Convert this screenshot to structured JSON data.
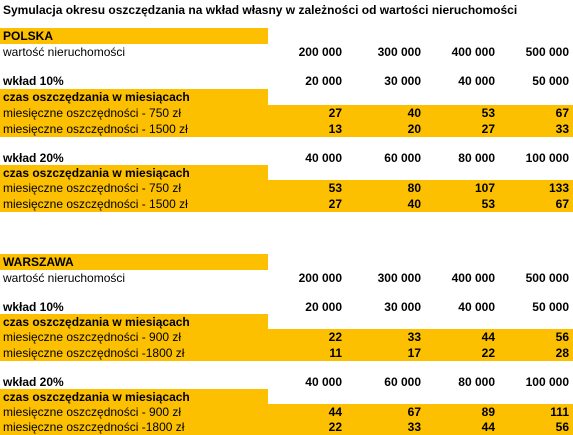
{
  "title": "Symulacja okresu oszczędzania na wkład własny w zależności od wartości nieruchomości",
  "sections": [
    {
      "name": "POLSKA",
      "property_label": "wartość nieruchomości",
      "property_values": [
        "200 000",
        "300 000",
        "400 000",
        "500 000"
      ],
      "blocks": [
        {
          "label": "wkład 10%",
          "values": [
            "20 000",
            "30 000",
            "40 000",
            "50 000"
          ],
          "time_label": "czas oszczędzania w miesiącach",
          "rows": [
            {
              "label": "miesięczne oszczędności - 750 zł",
              "values": [
                "27",
                "40",
                "53",
                "67"
              ]
            },
            {
              "label": "miesięczne oszczędności - 1500 zł",
              "values": [
                "13",
                "20",
                "27",
                "33"
              ]
            }
          ]
        },
        {
          "label": "wkład 20%",
          "values": [
            "40 000",
            "60 000",
            "80 000",
            "100 000"
          ],
          "time_label": "czas oszczędzania w miesiącach",
          "rows": [
            {
              "label": "miesięczne oszczędności - 750 zł",
              "values": [
                "53",
                "80",
                "107",
                "133"
              ]
            },
            {
              "label": "miesięczne oszczędności - 1500 zł",
              "values": [
                "27",
                "40",
                "53",
                "67"
              ]
            }
          ]
        }
      ]
    },
    {
      "name": "WARSZAWA",
      "property_label": "wartość nieruchomości",
      "property_values": [
        "200 000",
        "300 000",
        "400 000",
        "500 000"
      ],
      "blocks": [
        {
          "label": "wkład 10%",
          "values": [
            "20 000",
            "30 000",
            "40 000",
            "50 000"
          ],
          "time_label": "czas oszczędzania w miesiącach",
          "rows": [
            {
              "label": "miesięczne oszczędności - 900 zł",
              "values": [
                "22",
                "33",
                "44",
                "56"
              ]
            },
            {
              "label": "miesięczne oszczędności -1800 zł",
              "values": [
                "11",
                "17",
                "22",
                "28"
              ]
            }
          ]
        },
        {
          "label": "wkład 20%",
          "values": [
            "40 000",
            "60 000",
            "80 000",
            "100 000"
          ],
          "time_label": "czas oszczędzania w miesiącach",
          "rows": [
            {
              "label": "miesięczne oszczędności - 900 zł",
              "values": [
                "44",
                "67",
                "89",
                "111"
              ]
            },
            {
              "label": "miesięczne oszczędności -1800 zł",
              "values": [
                "22",
                "33",
                "44",
                "56"
              ]
            }
          ]
        }
      ]
    }
  ]
}
